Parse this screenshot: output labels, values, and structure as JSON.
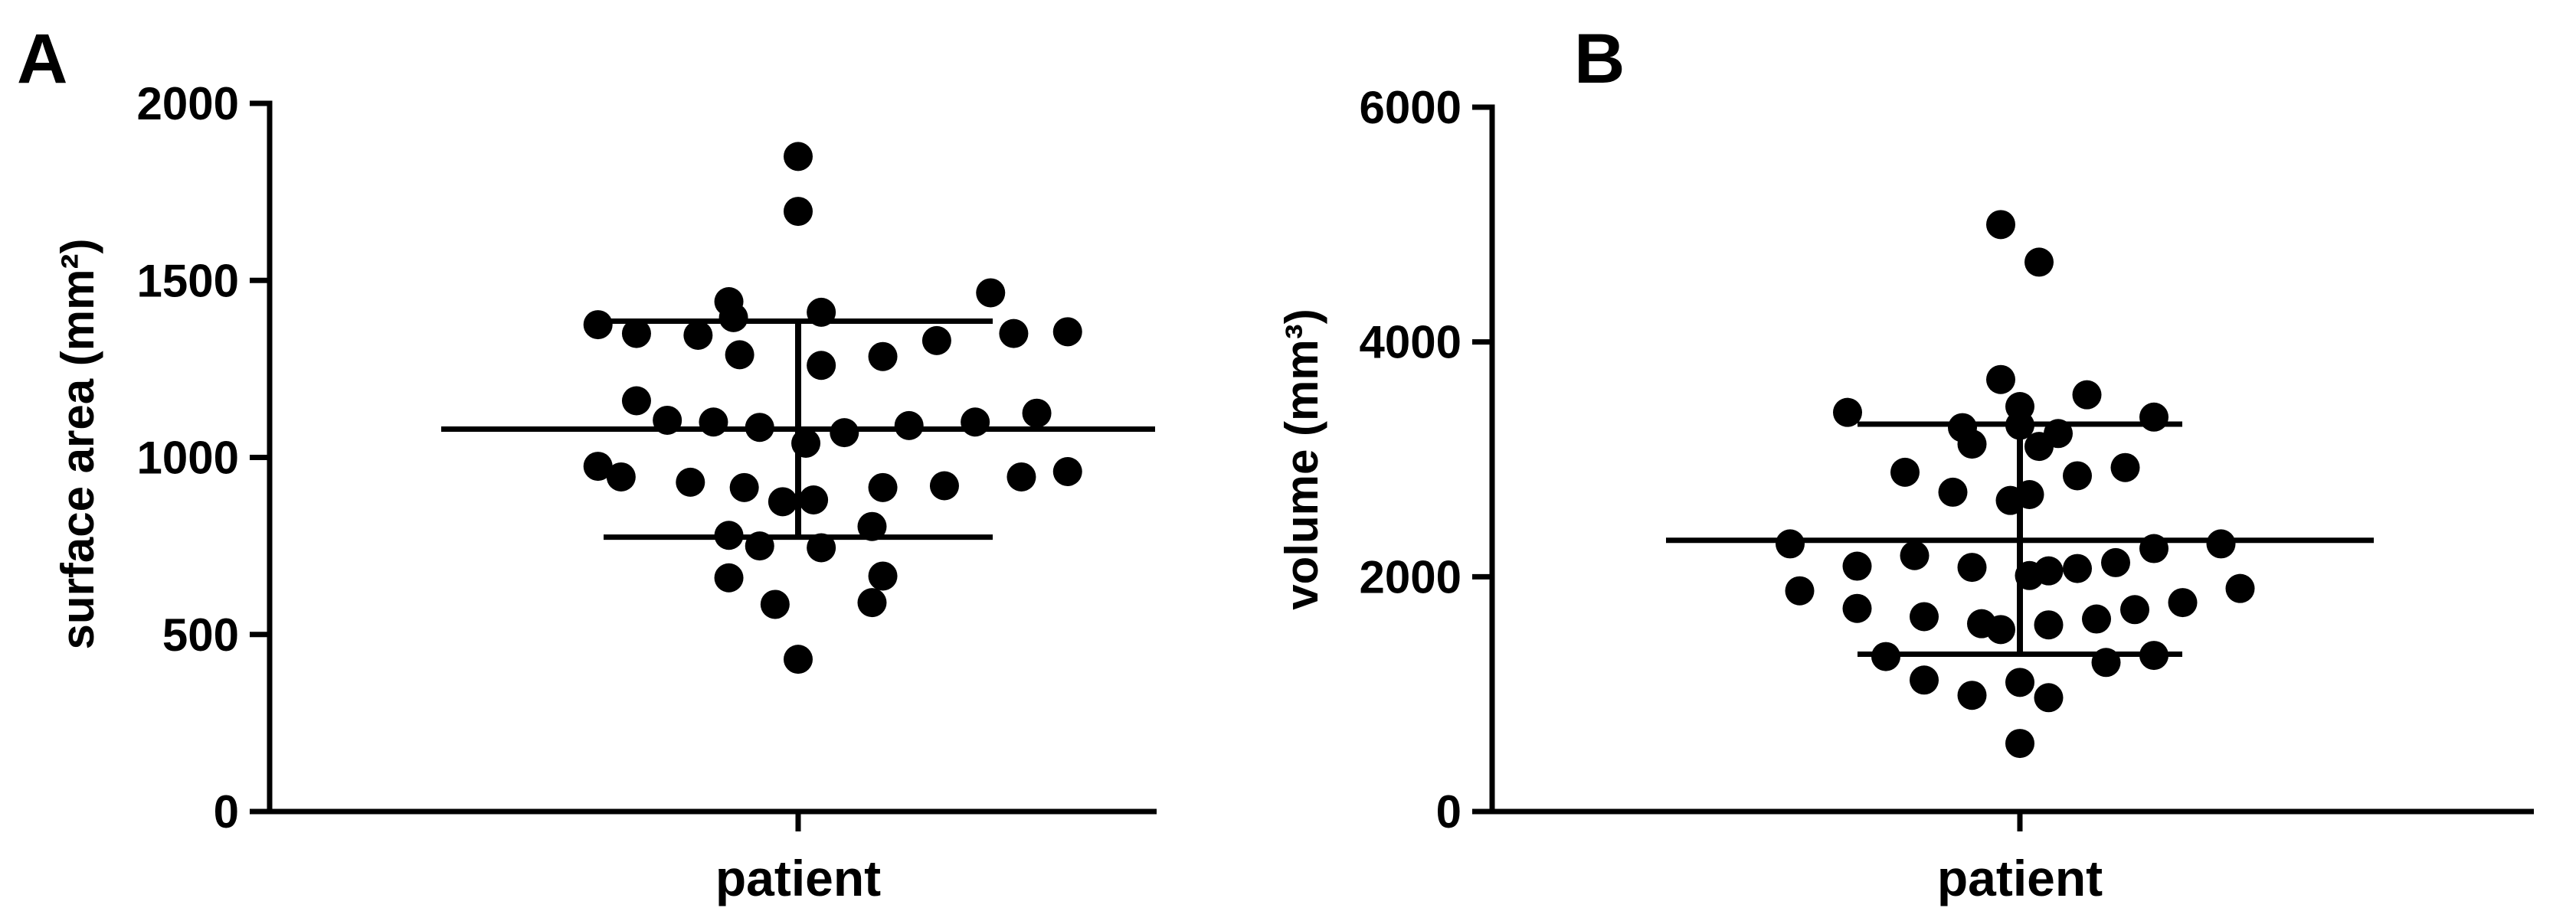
{
  "figure": {
    "panels": [
      {
        "panel_label": "A",
        "chart_data": {
          "type": "scatter",
          "title": "",
          "xlabel": "",
          "ylabel": "surface area (mm²)",
          "categories": [
            "patient"
          ],
          "ylim": [
            0,
            2000
          ],
          "yticks": [
            0,
            500,
            1000,
            1500,
            2000
          ],
          "grid": false,
          "legend": "none",
          "summary": {
            "mean": 1080,
            "upper": 1385,
            "lower": 775
          },
          "points": [
            {
              "dx": 0,
              "y": 1850
            },
            {
              "dx": 0,
              "y": 1695
            },
            {
              "dx": 1.25,
              "y": 1465
            },
            {
              "dx": -0.45,
              "y": 1440
            },
            {
              "dx": 0.15,
              "y": 1410
            },
            {
              "dx": -1.3,
              "y": 1375
            },
            {
              "dx": -1.05,
              "y": 1350
            },
            {
              "dx": -0.65,
              "y": 1345
            },
            {
              "dx": -0.42,
              "y": 1395
            },
            {
              "dx": 1.75,
              "y": 1355
            },
            {
              "dx": 1.4,
              "y": 1350
            },
            {
              "dx": 0.9,
              "y": 1330
            },
            {
              "dx": 0.55,
              "y": 1285
            },
            {
              "dx": -0.38,
              "y": 1290
            },
            {
              "dx": 0.15,
              "y": 1260
            },
            {
              "dx": -1.05,
              "y": 1160
            },
            {
              "dx": 1.55,
              "y": 1125
            },
            {
              "dx": -0.85,
              "y": 1105
            },
            {
              "dx": -0.55,
              "y": 1100
            },
            {
              "dx": 0.72,
              "y": 1090
            },
            {
              "dx": 1.15,
              "y": 1100
            },
            {
              "dx": -0.25,
              "y": 1085
            },
            {
              "dx": 0.3,
              "y": 1070
            },
            {
              "dx": 0.05,
              "y": 1040
            },
            {
              "dx": -1.3,
              "y": 975
            },
            {
              "dx": 1.75,
              "y": 960
            },
            {
              "dx": -1.15,
              "y": 945
            },
            {
              "dx": 1.45,
              "y": 945
            },
            {
              "dx": -0.7,
              "y": 930
            },
            {
              "dx": 0.95,
              "y": 920
            },
            {
              "dx": -0.35,
              "y": 915
            },
            {
              "dx": 0.55,
              "y": 915
            },
            {
              "dx": -0.1,
              "y": 875
            },
            {
              "dx": 0.1,
              "y": 880
            },
            {
              "dx": 0.48,
              "y": 805
            },
            {
              "dx": -0.45,
              "y": 780
            },
            {
              "dx": 0.15,
              "y": 745
            },
            {
              "dx": -0.25,
              "y": 750
            },
            {
              "dx": -0.45,
              "y": 660
            },
            {
              "dx": 0.55,
              "y": 665
            },
            {
              "dx": -0.15,
              "y": 585
            },
            {
              "dx": 0.48,
              "y": 590
            },
            {
              "dx": 0.0,
              "y": 430
            }
          ]
        }
      },
      {
        "panel_label": "B",
        "chart_data": {
          "type": "scatter",
          "title": "",
          "xlabel": "",
          "ylabel": "volume (mm³)",
          "categories": [
            "patient"
          ],
          "ylim": [
            0,
            6000
          ],
          "yticks": [
            0,
            2000,
            4000,
            6000
          ],
          "grid": false,
          "legend": "none",
          "summary": {
            "mean": 2310,
            "upper": 3300,
            "lower": 1340
          },
          "points": [
            {
              "dx": -0.1,
              "y": 5000
            },
            {
              "dx": 0.1,
              "y": 4680
            },
            {
              "dx": -0.1,
              "y": 3680
            },
            {
              "dx": 0.35,
              "y": 3550
            },
            {
              "dx": 0.0,
              "y": 3450
            },
            {
              "dx": -0.9,
              "y": 3400
            },
            {
              "dx": 0.7,
              "y": 3360
            },
            {
              "dx": -0.3,
              "y": 3270
            },
            {
              "dx": 0.0,
              "y": 3290
            },
            {
              "dx": 0.2,
              "y": 3220
            },
            {
              "dx": -0.25,
              "y": 3130
            },
            {
              "dx": 0.1,
              "y": 3110
            },
            {
              "dx": 0.55,
              "y": 2930
            },
            {
              "dx": -0.6,
              "y": 2890
            },
            {
              "dx": 0.3,
              "y": 2860
            },
            {
              "dx": -0.35,
              "y": 2720
            },
            {
              "dx": 0.05,
              "y": 2700
            },
            {
              "dx": -0.05,
              "y": 2650
            },
            {
              "dx": -1.2,
              "y": 2280
            },
            {
              "dx": 1.05,
              "y": 2280
            },
            {
              "dx": 0.7,
              "y": 2240
            },
            {
              "dx": -0.55,
              "y": 2180
            },
            {
              "dx": 0.5,
              "y": 2120
            },
            {
              "dx": -0.85,
              "y": 2090
            },
            {
              "dx": -0.25,
              "y": 2080
            },
            {
              "dx": 0.15,
              "y": 2050
            },
            {
              "dx": 0.05,
              "y": 2010
            },
            {
              "dx": 0.3,
              "y": 2070
            },
            {
              "dx": -1.15,
              "y": 1880
            },
            {
              "dx": 1.15,
              "y": 1900
            },
            {
              "dx": 0.85,
              "y": 1780
            },
            {
              "dx": -0.85,
              "y": 1730
            },
            {
              "dx": 0.6,
              "y": 1720
            },
            {
              "dx": -0.5,
              "y": 1660
            },
            {
              "dx": 0.4,
              "y": 1640
            },
            {
              "dx": -0.2,
              "y": 1600
            },
            {
              "dx": 0.15,
              "y": 1590
            },
            {
              "dx": -0.1,
              "y": 1550
            },
            {
              "dx": -0.7,
              "y": 1320
            },
            {
              "dx": 0.7,
              "y": 1330
            },
            {
              "dx": 0.45,
              "y": 1270
            },
            {
              "dx": -0.5,
              "y": 1120
            },
            {
              "dx": 0.0,
              "y": 1100
            },
            {
              "dx": -0.25,
              "y": 990
            },
            {
              "dx": 0.15,
              "y": 970
            },
            {
              "dx": 0.0,
              "y": 580
            }
          ]
        }
      }
    ]
  }
}
